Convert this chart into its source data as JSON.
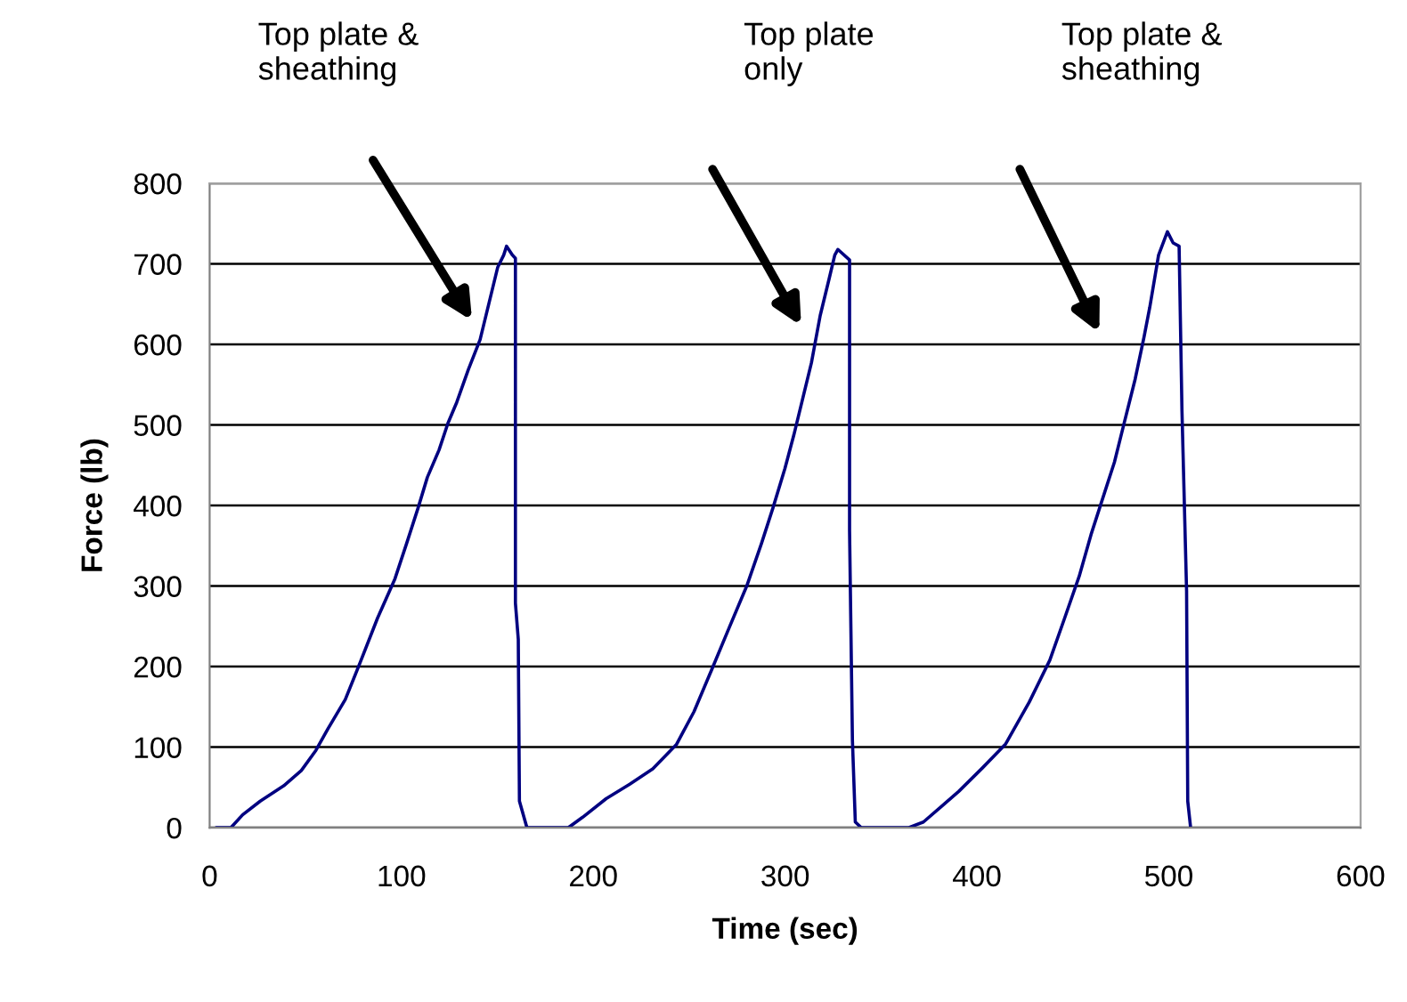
{
  "chart_data": {
    "type": "line",
    "xlabel": "Time (sec)",
    "ylabel": "Force (lb)",
    "xlim": [
      0,
      600
    ],
    "xticks": [
      0,
      100,
      200,
      300,
      400,
      500,
      600
    ],
    "ylim": [
      0,
      800
    ],
    "yticks": [
      0,
      100,
      200,
      300,
      400,
      500,
      600,
      700,
      800
    ],
    "grid": "y",
    "line_style": "solid",
    "series": [
      {
        "color": "#000080",
        "x": [
          3.4,
          11.1,
          17.2,
          26.4,
          38.6,
          47.8,
          55.4,
          61.5,
          70.7,
          78.3,
          87.5,
          96.6,
          102.7,
          108.8,
          113.5,
          119.6,
          124.2,
          128.8,
          134.9,
          141,
          145.6,
          150.2,
          153.3,
          154.8,
          157.8,
          159.4,
          159.4,
          160.9,
          161.5,
          165.4,
          187,
          194.5,
          206.7,
          219,
          231,
          243.3,
          252.5,
          261.7,
          270.8,
          280,
          287.7,
          293.8,
          299.9,
          304.5,
          309.1,
          313.7,
          318.3,
          322.9,
          325.9,
          327.5,
          333.6,
          333.6,
          335.1,
          336.6,
          339.7,
          364.3,
          372.1,
          381.3,
          390.5,
          402.8,
          415,
          427.3,
          438,
          445.7,
          453.3,
          459.5,
          465.6,
          471.7,
          476.3,
          482.5,
          487.1,
          490.1,
          494.7,
          499.3,
          502.3,
          505.4,
          506.9,
          509.3,
          509.9,
          511.4
        ],
        "values": [
          0,
          0,
          16,
          33,
          52,
          71,
          96,
          122,
          159,
          204,
          260,
          309,
          353,
          398,
          435,
          469,
          502,
          528,
          569,
          606,
          651,
          696,
          711,
          722,
          711,
          707,
          279,
          234,
          33,
          0,
          0,
          13,
          36,
          54,
          73,
          103,
          144,
          196,
          248,
          300,
          353,
          398,
          446,
          487,
          532,
          577,
          636,
          681,
          711,
          718,
          705,
          369,
          108,
          7,
          0,
          0,
          7,
          26,
          45,
          74,
          104,
          156,
          208,
          260,
          312,
          364,
          409,
          454,
          498,
          557,
          609,
          646,
          711,
          740,
          726,
          722,
          517,
          294,
          33,
          0
        ]
      }
    ],
    "annotations": [
      "Top plate &\nsheathing",
      "Top plate\nonly",
      "Top plate &\nsheathing"
    ]
  }
}
